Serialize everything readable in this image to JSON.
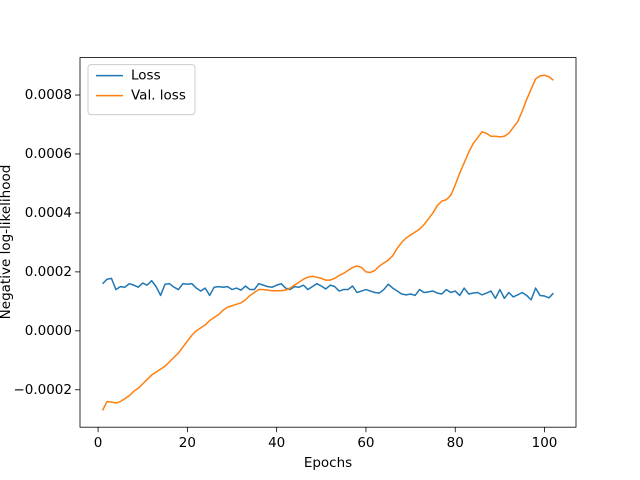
{
  "chart_data": {
    "type": "line",
    "x_label": "Epochs",
    "y_label": "Negative log-likelihood",
    "x": [
      1,
      2,
      3,
      4,
      5,
      6,
      7,
      8,
      9,
      10,
      11,
      12,
      13,
      14,
      15,
      16,
      17,
      18,
      19,
      20,
      21,
      22,
      23,
      24,
      25,
      26,
      27,
      28,
      29,
      30,
      31,
      32,
      33,
      34,
      35,
      36,
      37,
      38,
      39,
      40,
      41,
      42,
      43,
      44,
      45,
      46,
      47,
      48,
      49,
      50,
      51,
      52,
      53,
      54,
      55,
      56,
      57,
      58,
      59,
      60,
      61,
      62,
      63,
      64,
      65,
      66,
      67,
      68,
      69,
      70,
      71,
      72,
      73,
      74,
      75,
      76,
      77,
      78,
      79,
      80,
      81,
      82,
      83,
      84,
      85,
      86,
      87,
      88,
      89,
      90,
      91,
      92,
      93,
      94,
      95,
      96,
      97,
      98,
      99,
      100,
      101,
      102
    ],
    "series": [
      {
        "name": "Loss",
        "color": "#1f77b4",
        "values": [
          0.00016,
          0.000175,
          0.000178,
          0.00014,
          0.00015,
          0.000148,
          0.00016,
          0.000155,
          0.000148,
          0.000162,
          0.000155,
          0.00017,
          0.00015,
          0.00012,
          0.000158,
          0.00016,
          0.000148,
          0.00014,
          0.00016,
          0.000158,
          0.00016,
          0.000145,
          0.000135,
          0.000145,
          0.00012,
          0.000148,
          0.00015,
          0.000148,
          0.00015,
          0.00014,
          0.000145,
          0.000138,
          0.000152,
          0.00014,
          0.00014,
          0.00016,
          0.000155,
          0.00015,
          0.000148,
          0.000155,
          0.00016,
          0.000145,
          0.00014,
          0.00015,
          0.000148,
          0.000155,
          0.00014,
          0.00015,
          0.00016,
          0.000152,
          0.000142,
          0.000155,
          0.00015,
          0.000135,
          0.00014,
          0.00014,
          0.000152,
          0.00013,
          0.000135,
          0.00014,
          0.000135,
          0.00013,
          0.000128,
          0.00014,
          0.000158,
          0.000145,
          0.000135,
          0.000125,
          0.000122,
          0.000125,
          0.00012,
          0.00014,
          0.00013,
          0.000132,
          0.000135,
          0.000128,
          0.000125,
          0.00014,
          0.00013,
          0.000135,
          0.00012,
          0.000145,
          0.000125,
          0.000128,
          0.00013,
          0.000122,
          0.000128,
          0.000135,
          0.00011,
          0.00014,
          0.00011,
          0.00013,
          0.000115,
          0.000122,
          0.00013,
          0.00012,
          0.000105,
          0.000145,
          0.00012,
          0.000118,
          0.000112,
          0.000128
        ]
      },
      {
        "name": "Val. loss",
        "color": "#ff7f0e",
        "values": [
          -0.00027,
          -0.00024,
          -0.000242,
          -0.000245,
          -0.00024,
          -0.00023,
          -0.00022,
          -0.000205,
          -0.000195,
          -0.00018,
          -0.000165,
          -0.00015,
          -0.00014,
          -0.00013,
          -0.00012,
          -0.000105,
          -9e-05,
          -7.5e-05,
          -5.5e-05,
          -3.5e-05,
          -1.5e-05,
          0.0,
          1e-05,
          2e-05,
          3.5e-05,
          4.5e-05,
          5.5e-05,
          7e-05,
          8e-05,
          8.5e-05,
          9e-05,
          9.5e-05,
          0.000105,
          0.00012,
          0.00013,
          0.00014,
          0.00014,
          0.000138,
          0.000136,
          0.000136,
          0.000136,
          0.000138,
          0.000145,
          0.000155,
          0.000165,
          0.000175,
          0.000182,
          0.000185,
          0.000182,
          0.000178,
          0.000172,
          0.000172,
          0.000178,
          0.000188,
          0.000195,
          0.000205,
          0.000215,
          0.00022,
          0.000215,
          0.0002,
          0.000198,
          0.000205,
          0.00022,
          0.00023,
          0.00024,
          0.000255,
          0.00028,
          0.0003,
          0.000315,
          0.000325,
          0.000335,
          0.000345,
          0.00036,
          0.00038,
          0.0004,
          0.000425,
          0.00044,
          0.000445,
          0.00046,
          0.000495,
          0.000535,
          0.00057,
          0.000605,
          0.000635,
          0.000655,
          0.000675,
          0.00067,
          0.00066,
          0.00066,
          0.000658,
          0.00066,
          0.00067,
          0.00069,
          0.00071,
          0.000745,
          0.000785,
          0.00082,
          0.000855,
          0.000865,
          0.000867,
          0.000862,
          0.00085
        ]
      }
    ],
    "xlim": [
      -4.05,
      107.05
    ],
    "ylim": [
      -0.000327,
      0.000927
    ],
    "xticks": [
      0,
      20,
      40,
      60,
      80,
      100
    ],
    "yticks": [
      {
        "value": -0.0002,
        "label": "−0.0002"
      },
      {
        "value": 0,
        "label": "0.0000"
      },
      {
        "value": 0.0002,
        "label": "0.0002"
      },
      {
        "value": 0.0004,
        "label": "0.0004"
      },
      {
        "value": 0.0006,
        "label": "0.0006"
      },
      {
        "value": 0.0008,
        "label": "0.0008"
      }
    ],
    "legend": "upper left",
    "grid": false
  }
}
